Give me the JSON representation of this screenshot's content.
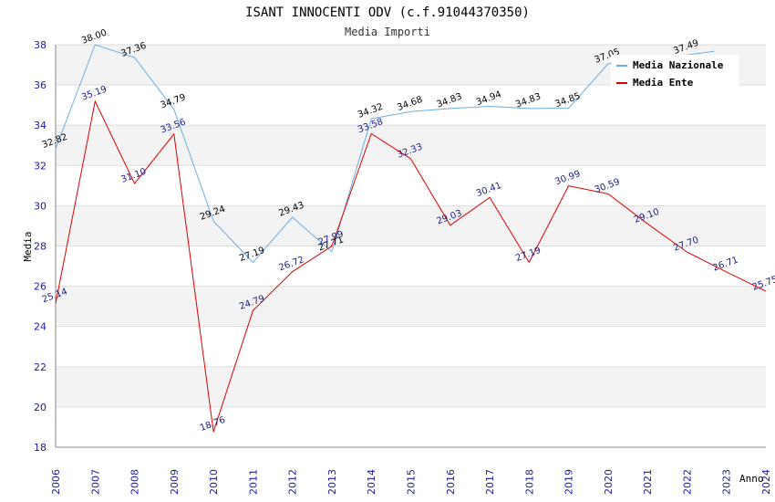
{
  "chart_data": {
    "type": "line",
    "title": "ISANT INNOCENTI ODV (c.f.91044370350)",
    "subtitle": "Media Importi",
    "xlabel": "Anno",
    "ylabel": "Media",
    "ylim": [
      18,
      38
    ],
    "yticks": [
      18,
      20,
      22,
      24,
      26,
      28,
      30,
      32,
      34,
      36,
      38
    ],
    "grid": true,
    "legend_position": "top-right",
    "x": [
      "2006",
      "2007",
      "2008",
      "2009",
      "2010",
      "2011",
      "2012",
      "2013",
      "2014",
      "2015",
      "2016",
      "2017",
      "2018",
      "2019",
      "2020",
      "2021",
      "2022",
      "2023",
      "2024"
    ],
    "series": [
      {
        "name": "Media Nazionale",
        "color": "#6aaee8",
        "values": [
          32.82,
          38.0,
          37.36,
          34.79,
          29.24,
          27.19,
          29.43,
          27.71,
          34.32,
          34.68,
          34.83,
          34.94,
          34.83,
          34.85,
          37.05,
          null,
          37.49,
          null,
          null
        ],
        "labels": [
          "32.82",
          "38.00",
          "37.36",
          "34.79",
          "29.24",
          "27.19",
          "29.43",
          "27.71",
          "34.32",
          "34.68",
          "34.83",
          "34.94",
          "34.83",
          "34.85",
          "37.05",
          "",
          "37.49",
          "",
          ""
        ]
      },
      {
        "name": "Media Ente",
        "color": "#dd0000",
        "values": [
          25.14,
          35.19,
          31.1,
          33.56,
          18.76,
          24.79,
          26.72,
          27.99,
          33.58,
          32.33,
          29.03,
          30.41,
          27.19,
          30.99,
          30.59,
          29.1,
          27.7,
          26.71,
          25.75
        ],
        "labels": [
          "25.14",
          "35.19",
          "31.10",
          "33.56",
          "18.76",
          "24.79",
          "26.72",
          "27.99",
          "33.58",
          "32.33",
          "29.03",
          "30.41",
          "27.19",
          "30.99",
          "30.59",
          "29.10",
          "27.70",
          "26.71",
          "25.75"
        ]
      }
    ]
  }
}
